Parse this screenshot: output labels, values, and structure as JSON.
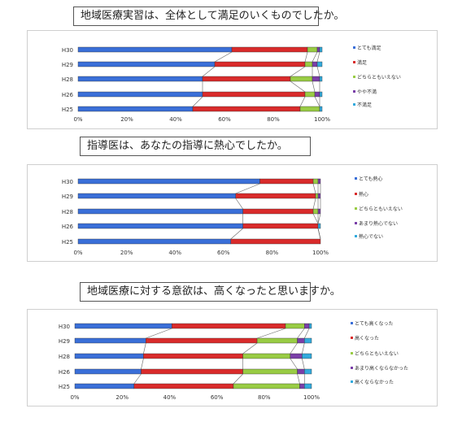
{
  "questions": [
    "地域医療実習は、全体として満足のいくものでしたか。",
    "指導医は、あなたの指導に熱心でしたか。",
    "地域医療に対する意欲は、高くなったと思いますか。"
  ],
  "colors": [
    "#3a6fd8",
    "#d92b2b",
    "#99cc44",
    "#7a3fa8",
    "#33aadd"
  ],
  "chart_data": [
    {
      "type": "bar",
      "orientation": "horizontal",
      "stacked": "percent",
      "categories": [
        "H30",
        "H29",
        "H28",
        "H26",
        "H25"
      ],
      "series": [
        {
          "name": "とても満足",
          "values": [
            63,
            56,
            51,
            51,
            47
          ]
        },
        {
          "name": "満足",
          "values": [
            31,
            37,
            36,
            42,
            44
          ]
        },
        {
          "name": "どちらともいえない",
          "values": [
            4,
            3,
            9,
            4,
            8
          ]
        },
        {
          "name": "やや不満",
          "values": [
            1,
            2,
            3,
            2,
            0
          ]
        },
        {
          "name": "不満足",
          "values": [
            1,
            2,
            1,
            1,
            1
          ]
        }
      ],
      "x_ticks": [
        "0%",
        "20%",
        "40%",
        "60%",
        "80%",
        "100%"
      ],
      "xlim": [
        0,
        100
      ],
      "legend": "right"
    },
    {
      "type": "bar",
      "orientation": "horizontal",
      "stacked": "percent",
      "categories": [
        "H30",
        "H29",
        "H28",
        "H26",
        "H25"
      ],
      "series": [
        {
          "name": "とても熱心",
          "values": [
            75,
            65,
            68,
            68,
            63
          ]
        },
        {
          "name": "熱心",
          "values": [
            22,
            33,
            29,
            31,
            37
          ]
        },
        {
          "name": "どちらともいえない",
          "values": [
            2,
            1,
            2,
            0,
            0
          ]
        },
        {
          "name": "あまり熱心でない",
          "values": [
            1,
            1,
            1,
            0,
            0
          ]
        },
        {
          "name": "熱心でない",
          "values": [
            0,
            0,
            0,
            1,
            0
          ]
        }
      ],
      "x_ticks": [
        "0%",
        "20%",
        "40%",
        "60%",
        "80%",
        "100%"
      ],
      "xlim": [
        0,
        100
      ],
      "legend": "right"
    },
    {
      "type": "bar",
      "orientation": "horizontal",
      "stacked": "percent",
      "categories": [
        "H30",
        "H29",
        "H28",
        "H26",
        "H25"
      ],
      "series": [
        {
          "name": "とても高くなった",
          "values": [
            41,
            30,
            29,
            28,
            25
          ]
        },
        {
          "name": "高くなった",
          "values": [
            48,
            47,
            42,
            43,
            42
          ]
        },
        {
          "name": "どちらともいえない",
          "values": [
            8,
            17,
            20,
            23,
            28
          ]
        },
        {
          "name": "あまり高くならなかった",
          "values": [
            2,
            3,
            5,
            3,
            2
          ]
        },
        {
          "name": "高くならなかった",
          "values": [
            1,
            3,
            4,
            3,
            3
          ]
        }
      ],
      "x_ticks": [
        "0%",
        "20%",
        "40%",
        "60%",
        "80%",
        "100%"
      ],
      "xlim": [
        0,
        100
      ],
      "legend": "right"
    }
  ]
}
